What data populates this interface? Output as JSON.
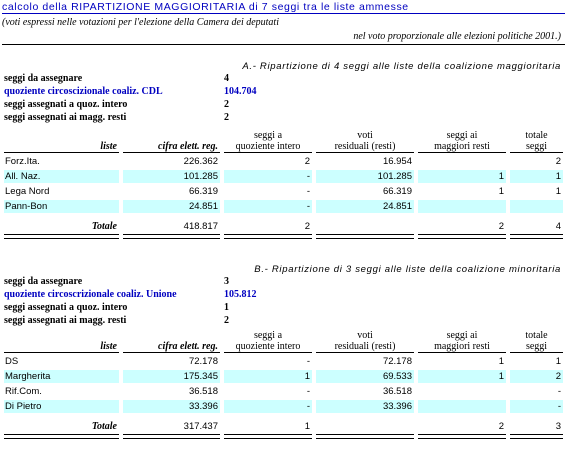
{
  "title": "calcolo della RIPARTIZIONE MAGGIORITARIA di 7 seggi tra le liste ammesse",
  "subtitle_1": "(voti espressi nelle votazioni per l'elezione della Camera dei deputati",
  "subtitle_2": "nel voto proporzionale alle elezioni politiche 2001.)",
  "columns": {
    "liste": "liste",
    "cifra": "cifra elett. reg.",
    "seggi_quoz_1": "seggi a",
    "seggi_quoz_2": "quoziente intero",
    "voti_1": "voti",
    "voti_2": "residuali (resti)",
    "seggi_resti_1": "seggi ai",
    "seggi_resti_2": "maggiori resti",
    "totale_1": "totale",
    "totale_2": "seggi"
  },
  "section_a": {
    "title": "A.- Ripartizione di 4 seggi alle liste della coalizione maggioritaria",
    "info": [
      {
        "label": "seggi da assegnare",
        "value": "4",
        "blue": false
      },
      {
        "label": "quoziente circoscizionale coaliz. CDL",
        "value": "104.704",
        "blue": true
      },
      {
        "label": "seggi assegnati a quoz. intero",
        "value": "2",
        "blue": false
      },
      {
        "label": "seggi assegnati ai magg. resti",
        "value": "2",
        "blue": false
      }
    ],
    "rows": [
      {
        "name": "Forz.Ita.",
        "cifra": "226.362",
        "quoz": "2",
        "resti": "16.954",
        "magg": "",
        "tot": "2"
      },
      {
        "name": "All. Naz.",
        "cifra": "101.285",
        "quoz": "-",
        "resti": "101.285",
        "magg": "1",
        "tot": "1"
      },
      {
        "name": "Lega Nord",
        "cifra": "66.319",
        "quoz": "-",
        "resti": "66.319",
        "magg": "1",
        "tot": "1"
      },
      {
        "name": "Pann-Bon",
        "cifra": "24.851",
        "quoz": "-",
        "resti": "24.851",
        "magg": "",
        "tot": ""
      }
    ],
    "totals": {
      "label": "Totale",
      "cifra": "418.817",
      "quoz": "2",
      "resti": "",
      "magg": "2",
      "tot": "4"
    }
  },
  "section_b": {
    "title": "B.- Ripartizione di 3 seggi alle liste della coalizione minoritaria",
    "info": [
      {
        "label": "seggi da assegnare",
        "value": "3",
        "blue": false
      },
      {
        "label": "quoziente circoscrizionale coaliz. Unione",
        "value": "105.812",
        "blue": true
      },
      {
        "label": "seggi assegnati a quoz. intero",
        "value": "1",
        "blue": false
      },
      {
        "label": "seggi assegnati ai magg. resti",
        "value": "2",
        "blue": false
      }
    ],
    "rows": [
      {
        "name": "DS",
        "cifra": "72.178",
        "quoz": "-",
        "resti": "72.178",
        "magg": "1",
        "tot": "1"
      },
      {
        "name": "Margherita",
        "cifra": "175.345",
        "quoz": "1",
        "resti": "69.533",
        "magg": "1",
        "tot": "2"
      },
      {
        "name": "Rif.Com.",
        "cifra": "36.518",
        "quoz": "-",
        "resti": "36.518",
        "magg": "",
        "tot": "-"
      },
      {
        "name": "Di Pietro",
        "cifra": "33.396",
        "quoz": "-",
        "resti": "33.396",
        "magg": "",
        "tot": "-"
      }
    ],
    "totals": {
      "label": "Totale",
      "cifra": "317.437",
      "quoz": "1",
      "resti": "",
      "magg": "2",
      "tot": "3"
    }
  }
}
